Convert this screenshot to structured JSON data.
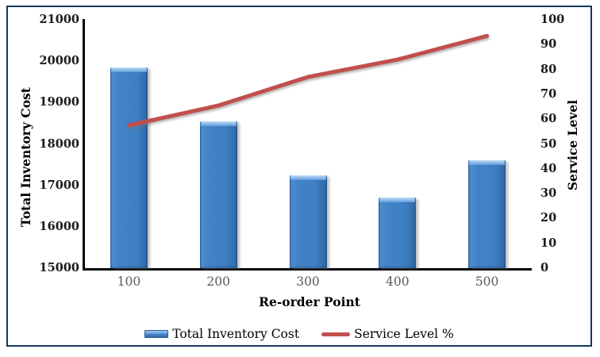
{
  "window": {
    "border_color": "#17375D",
    "background_color": "#FFFFFF"
  },
  "chart_data": {
    "type": "combo",
    "subtypes": [
      "bar",
      "line"
    ],
    "title": "",
    "categories": [
      "100",
      "200",
      "300",
      "400",
      "500"
    ],
    "series": [
      {
        "name": "Total Inventory Cost",
        "type": "bar",
        "axis": "left",
        "color": "#3F7EC1",
        "values": [
          19850,
          18550,
          17250,
          16700,
          17600
        ]
      },
      {
        "name": "Service Level %",
        "type": "line",
        "axis": "right",
        "color": "#C0504D",
        "values": [
          57.5,
          65.5,
          77,
          84,
          93.5
        ]
      }
    ],
    "xlabel": "Re-order Point",
    "ylabel_left": "Total Inventory Cost",
    "ylabel_right": "Service Level",
    "ylim_left": [
      15000,
      21000
    ],
    "ytick_step_left": 1000,
    "ylim_right": [
      0,
      100
    ],
    "ytick_step_right": 10,
    "left_ticks": [
      "21000",
      "20000",
      "19000",
      "18000",
      "17000",
      "16000",
      "15000"
    ],
    "right_ticks": [
      "100",
      "90",
      "80",
      "70",
      "60",
      "50",
      "40",
      "30",
      "20",
      "10",
      "0"
    ],
    "x_ticks": [
      "100",
      "200",
      "300",
      "400",
      "500"
    ],
    "grid": false,
    "legend_position": "bottom",
    "legend": [
      {
        "label": "Total Inventory Cost",
        "swatch": "bar-swatch",
        "color": "#3F7EC1"
      },
      {
        "label": "Service Level %",
        "swatch": "line-swatch",
        "color": "#C0504D"
      }
    ]
  }
}
